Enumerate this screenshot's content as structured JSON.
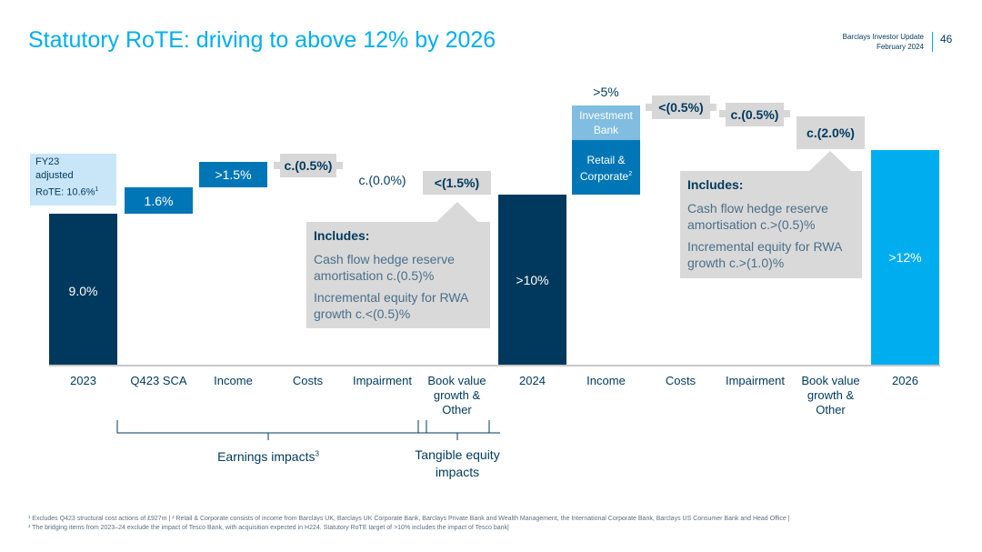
{
  "header": {
    "title": "Statutory RoTE: driving to above 12% by 2026",
    "doc_name": "Barclays Investor Update",
    "doc_date": "February 2024",
    "page_number": "46"
  },
  "colors": {
    "dark": "#00395d",
    "mid": "#0076b6",
    "light": "#00aeef",
    "pale": "#80bde0",
    "grey": "#d7d7d7"
  },
  "chart_data": {
    "type": "bar",
    "subtype": "waterfall",
    "categories": [
      "2023",
      "Q423 SCA",
      "Income",
      "Costs",
      "Impairment",
      "Book value growth & Other",
      "2024",
      "Income",
      "Costs",
      "Impairment",
      "Book value growth & Other",
      "2026"
    ],
    "category_lines": [
      [
        "2023"
      ],
      [
        "Q423 SCA"
      ],
      [
        "Income"
      ],
      [
        "Costs"
      ],
      [
        "Impairment"
      ],
      [
        "Book value",
        "growth &",
        "Other"
      ],
      [
        "2024"
      ],
      [
        "Income"
      ],
      [
        "Costs"
      ],
      [
        "Impairment"
      ],
      [
        "Book value",
        "growth &",
        "Other"
      ],
      [
        "2026"
      ]
    ],
    "values": [
      9.0,
      1.6,
      1.5,
      -0.5,
      0.0,
      -1.5,
      10.0,
      5.0,
      -0.5,
      -0.5,
      -2.0,
      12.0
    ],
    "labels": [
      "9.0%",
      "1.6%",
      ">1.5%",
      "c.(0.5%)",
      "c.(0.0%)",
      "<(1.5%)",
      ">10%",
      ">5%",
      "<(0.5%)",
      "c.(0.5%)",
      "c.(2.0%)",
      ">12%"
    ],
    "income_2026_split": {
      "investment_bank_label": "Investment Bank",
      "retail_corporate_label": "Retail & Corporate",
      "retail_corporate_sup": "2"
    },
    "fy23_note": {
      "line1": "FY23",
      "line2": "adjusted",
      "line3": "RoTE: 10.6%",
      "sup": "1"
    },
    "groups": [
      {
        "label": "Earnings impacts",
        "sup": "3"
      },
      {
        "label": "Tangible equity impacts"
      }
    ]
  },
  "notes": [
    {
      "head": "Includes:",
      "lines": [
        "Cash flow hedge reserve amortisation c.(0.5)%",
        "Incremental equity for RWA growth c.<(0.5)%"
      ]
    },
    {
      "head": "Includes:",
      "lines": [
        "Cash flow hedge reserve amortisation c.>(0.5)%",
        "Incremental equity for RWA growth c.>(1.0)%"
      ]
    }
  ],
  "footnotes": [
    "¹ Excludes Q423 structural cost actions of £927m | ² Retail & Corporate consists of income from Barclays UK, Barclays UK Corporate Bank, Barclays Private Bank and Wealth Management, the International Corporate Bank, Barclays US Consumer Bank and Head Office |",
    "³ The bridging items from 2023–24 exclude the impact of Tesco Bank, with acquisition expected in H224. Statutory RoTE target of >10% includes the impact of Tesco bank|"
  ]
}
